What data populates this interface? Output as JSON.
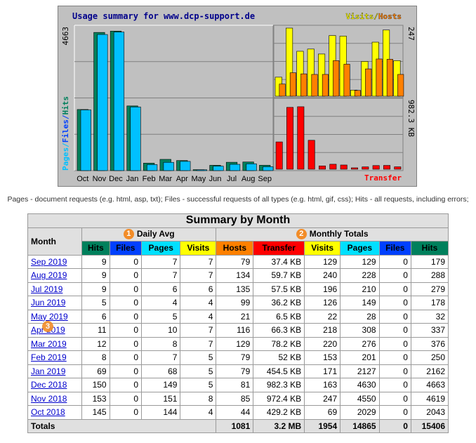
{
  "chart_data": [
    {
      "type": "bar",
      "title": "Usage summary for www.dcp-support.de",
      "ylabel": "Pages/Files/Hits",
      "ymax_label": "4663",
      "ylim": [
        0,
        4663
      ],
      "categories": [
        "Oct",
        "Nov",
        "Dec",
        "Jan",
        "Feb",
        "Mar",
        "Apr",
        "May",
        "Jun",
        "Jul",
        "Aug",
        "Sep"
      ],
      "series": [
        {
          "name": "Pages",
          "color": "#00c0ff",
          "values": [
            2029,
            4550,
            4630,
            2127,
            201,
            276,
            308,
            28,
            149,
            210,
            228,
            129
          ]
        },
        {
          "name": "Files",
          "color": "#0040ff",
          "values": [
            0,
            0,
            0,
            0,
            0,
            0,
            0,
            0,
            0,
            0,
            0,
            0
          ]
        },
        {
          "name": "Hits",
          "color": "#00805c",
          "values": [
            2043,
            4619,
            4663,
            2162,
            250,
            376,
            337,
            32,
            178,
            279,
            288,
            179
          ]
        }
      ]
    },
    {
      "type": "bar",
      "legend": [
        "Visits",
        "Hosts"
      ],
      "ymax_label": "247",
      "ylim": [
        0,
        247
      ],
      "categories": [
        "Oct",
        "Nov",
        "Dec",
        "Jan",
        "Feb",
        "Mar",
        "Apr",
        "May",
        "Jun",
        "Jul",
        "Aug",
        "Sep"
      ],
      "series": [
        {
          "name": "Visits",
          "color": "#ffff00",
          "values": [
            69,
            247,
            163,
            171,
            153,
            220,
            218,
            22,
            126,
            196,
            240,
            129
          ]
        },
        {
          "name": "Hosts",
          "color": "#ff8000",
          "values": [
            44,
            85,
            81,
            79,
            79,
            129,
            116,
            21,
            99,
            135,
            134,
            79
          ]
        }
      ]
    },
    {
      "type": "bar",
      "legend": [
        "Transfer"
      ],
      "ymax_label": "982.3 KB",
      "ylim": [
        0,
        982.3
      ],
      "categories": [
        "Oct",
        "Nov",
        "Dec",
        "Jan",
        "Feb",
        "Mar",
        "Apr",
        "May",
        "Jun",
        "Jul",
        "Aug",
        "Sep"
      ],
      "series": [
        {
          "name": "Transfer",
          "color": "#ff0000",
          "values": [
            429.2,
            972.4,
            982.3,
            454.5,
            52,
            78.2,
            66.3,
            6.5,
            36.2,
            57.5,
            59.7,
            37.4
          ]
        }
      ]
    }
  ],
  "description": "Pages - document requests (e.g. html, asp, txt); Files - successful requests of all types (e.g. html, gif, css); Hits - all requests, including errors;",
  "table": {
    "caption": "Summary by Month",
    "month_header": "Month",
    "daily_avg_header": "Daily Avg",
    "monthly_totals_header": "Monthly Totals",
    "badges": [
      "1",
      "2",
      "3"
    ],
    "daily_cols": [
      {
        "label": "Hits",
        "color": "#00805c"
      },
      {
        "label": "Files",
        "color": "#0040ff"
      },
      {
        "label": "Pages",
        "color": "#00e0ff"
      },
      {
        "label": "Visits",
        "color": "#ffff00"
      }
    ],
    "monthly_cols": [
      {
        "label": "Hosts",
        "color": "#ff8000"
      },
      {
        "label": "Transfer",
        "color": "#ff0000"
      },
      {
        "label": "Visits",
        "color": "#ffff00"
      },
      {
        "label": "Pages",
        "color": "#00e0ff"
      },
      {
        "label": "Files",
        "color": "#0040ff"
      },
      {
        "label": "Hits",
        "color": "#00805c"
      }
    ],
    "rows": [
      {
        "month": "Sep 2019",
        "d": [
          "9",
          "0",
          "7",
          "7"
        ],
        "m": [
          "79",
          "37.4 KB",
          "129",
          "129",
          "0",
          "179"
        ]
      },
      {
        "month": "Aug 2019",
        "d": [
          "9",
          "0",
          "7",
          "7"
        ],
        "m": [
          "134",
          "59.7 KB",
          "240",
          "228",
          "0",
          "288"
        ]
      },
      {
        "month": "Jul 2019",
        "d": [
          "9",
          "0",
          "6",
          "6"
        ],
        "m": [
          "135",
          "57.5 KB",
          "196",
          "210",
          "0",
          "279"
        ]
      },
      {
        "month": "Jun 2019",
        "d": [
          "5",
          "0",
          "4",
          "4"
        ],
        "m": [
          "99",
          "36.2 KB",
          "126",
          "149",
          "0",
          "178"
        ]
      },
      {
        "month": "May 2019",
        "d": [
          "6",
          "0",
          "5",
          "4"
        ],
        "m": [
          "21",
          "6.5 KB",
          "22",
          "28",
          "0",
          "32"
        ]
      },
      {
        "month": "Apr 2019",
        "d": [
          "11",
          "0",
          "10",
          "7"
        ],
        "m": [
          "116",
          "66.3 KB",
          "218",
          "308",
          "0",
          "337"
        ]
      },
      {
        "month": "Mar 2019",
        "d": [
          "12",
          "0",
          "8",
          "7"
        ],
        "m": [
          "129",
          "78.2 KB",
          "220",
          "276",
          "0",
          "376"
        ]
      },
      {
        "month": "Feb 2019",
        "d": [
          "8",
          "0",
          "7",
          "5"
        ],
        "m": [
          "79",
          "52 KB",
          "153",
          "201",
          "0",
          "250"
        ]
      },
      {
        "month": "Jan 2019",
        "d": [
          "69",
          "0",
          "68",
          "5"
        ],
        "m": [
          "79",
          "454.5 KB",
          "171",
          "2127",
          "0",
          "2162"
        ]
      },
      {
        "month": "Dec 2018",
        "d": [
          "150",
          "0",
          "149",
          "5"
        ],
        "m": [
          "81",
          "982.3 KB",
          "163",
          "4630",
          "0",
          "4663"
        ]
      },
      {
        "month": "Nov 2018",
        "d": [
          "153",
          "0",
          "151",
          "8"
        ],
        "m": [
          "85",
          "972.4 KB",
          "247",
          "4550",
          "0",
          "4619"
        ]
      },
      {
        "month": "Oct 2018",
        "d": [
          "145",
          "0",
          "144",
          "4"
        ],
        "m": [
          "44",
          "429.2 KB",
          "69",
          "2029",
          "0",
          "2043"
        ]
      }
    ],
    "totals": {
      "label": "Totals",
      "m": [
        "1081",
        "3.2 MB",
        "1954",
        "14865",
        "0",
        "15406"
      ]
    }
  }
}
